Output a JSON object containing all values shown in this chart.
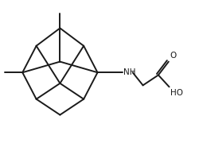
{
  "background_color": "#ffffff",
  "line_color": "#1a1a1a",
  "line_width": 1.4,
  "text_color": "#1a1a1a",
  "NH_label": "NH",
  "O_label": "O",
  "HO_label": "HO",
  "figsize": [
    2.5,
    1.8
  ],
  "dpi": 100,
  "xlim": [
    0,
    10
  ],
  "ylim": [
    0,
    7.2
  ]
}
